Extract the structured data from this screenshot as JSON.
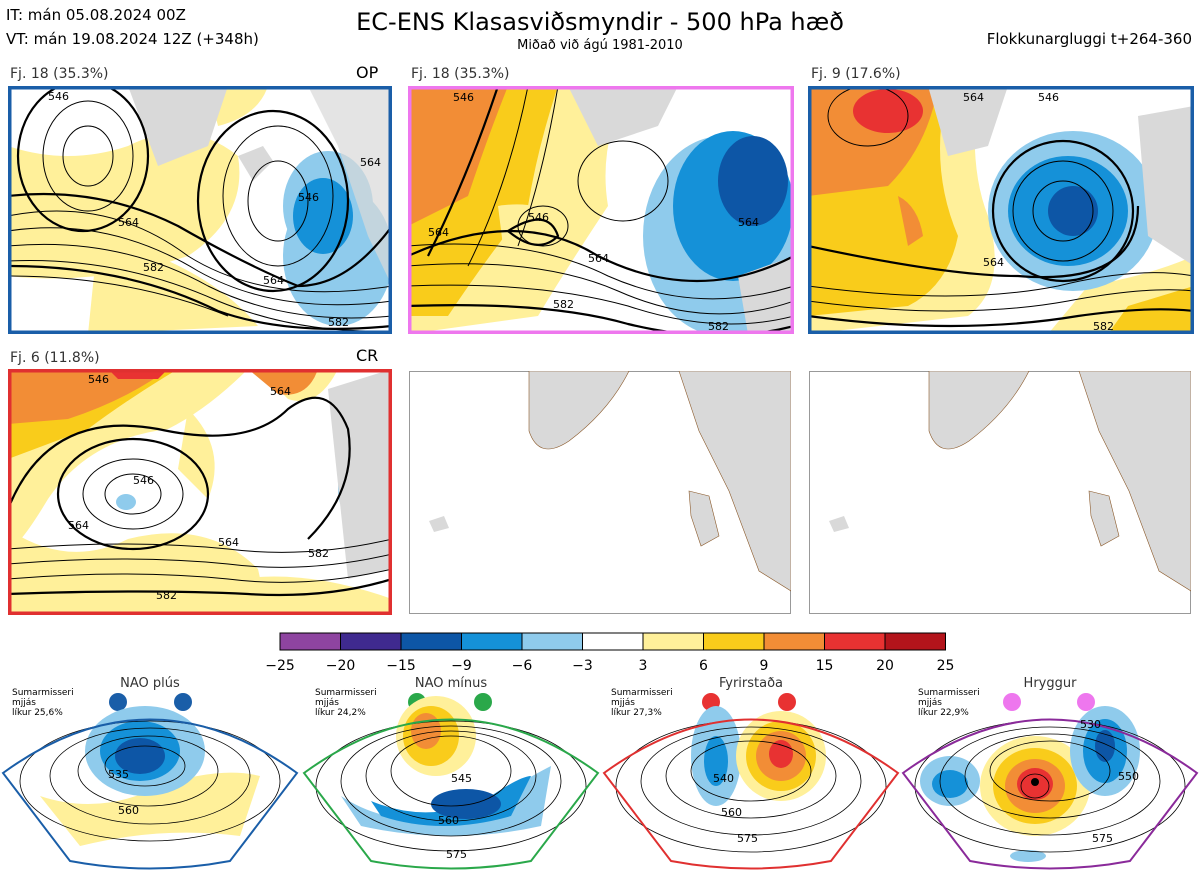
{
  "header": {
    "it_line": "IT: mán 05.08.2024 00Z",
    "vt_line": "VT: mán 19.08.2024 12Z  (+348h)",
    "title": "EC-ENS Klasasviðsmyndir - 500 hPa hæð",
    "subtitle": "Miðað við ágú 1981-2010",
    "window": "Flokkunargluggi t+264-360"
  },
  "panels": [
    {
      "label": "Fj. 18 (35.3%)",
      "tag": "OP",
      "border_color": "#1a5ea8"
    },
    {
      "label": "Fj. 18 (35.3%)",
      "tag": "",
      "border_color": "#ee77ee"
    },
    {
      "label": "Fj. 9 (17.6%)",
      "tag": "",
      "border_color": "#1a5ea8"
    },
    {
      "label": "Fj. 6 (11.8%)",
      "tag": "CR",
      "border_color": "#e03030"
    },
    {
      "label": "",
      "tag": "",
      "border_color": ""
    },
    {
      "label": "",
      "tag": "",
      "border_color": ""
    }
  ],
  "contour_labels": {
    "p1": [
      "564",
      "546",
      "582",
      "564",
      "546",
      "564",
      "582"
    ],
    "p2": [
      "546",
      "564",
      "546",
      "564",
      "564",
      "582",
      "582"
    ],
    "p3": [
      "564",
      "564",
      "546",
      "582"
    ],
    "p4": [
      "546",
      "564",
      "546",
      "564",
      "582",
      "582",
      "564"
    ]
  },
  "colorbar": {
    "ticks": [
      "−25",
      "−20",
      "−15",
      "−9",
      "−6",
      "−3",
      "3",
      "6",
      "9",
      "15",
      "20",
      "25"
    ],
    "colors": [
      "#8e44a0",
      "#3f2a8f",
      "#0d56a6",
      "#1591d8",
      "#8fcbec",
      "#ffffff",
      "#fff09a",
      "#f9cc1b",
      "#f28d36",
      "#e83232",
      "#b3141b"
    ]
  },
  "regimes": [
    {
      "name": "NAO plús",
      "season": "Sumarmisseri",
      "smooth": "mjjás",
      "prob": "líkur 25,6%",
      "color": "#1a5ea8",
      "dot_color": "#1a5ea8",
      "labels": [
        "535",
        "560"
      ]
    },
    {
      "name": "NAO mínus",
      "season": "Sumarmisseri",
      "smooth": "mjjás",
      "prob": "líkur 24,2%",
      "color": "#2aa84a",
      "dot_color": "#2aa84a",
      "labels": [
        "545",
        "560",
        "575"
      ]
    },
    {
      "name": "Fyrirstaða",
      "season": "Sumarmisseri",
      "smooth": "mjjás",
      "prob": "líkur 27,3%",
      "color": "#e03030",
      "dot_color": "#e83232",
      "labels": [
        "540",
        "560",
        "575"
      ]
    },
    {
      "name": "Hryggur",
      "season": "Sumarmisseri",
      "smooth": "mjjás",
      "prob": "líkur 22,9%",
      "color": "#8a2a9a",
      "dot_color": "#ee77ee",
      "labels": [
        "530",
        "550",
        "575"
      ]
    }
  ]
}
